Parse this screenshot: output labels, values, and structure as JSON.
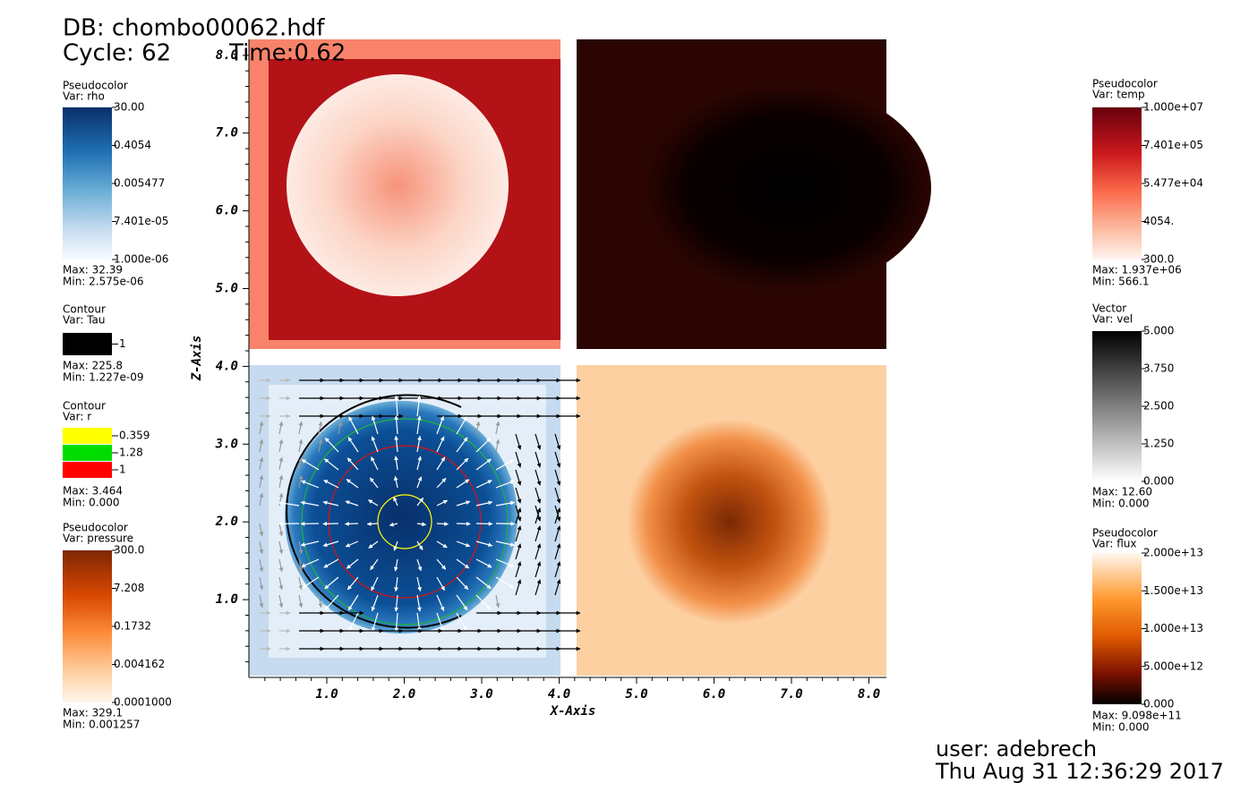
{
  "header": {
    "db": "DB: chombo00062.hdf",
    "cycle": "Cycle: 62",
    "time": "Time:0.62"
  },
  "legends": [
    {
      "plot": "Pseudocolor",
      "var": "Var: rho",
      "labels": [
        "30.00",
        "0.4054",
        "0.005477",
        "7.401e-05",
        "1.000e-06"
      ],
      "max": "Max:  32.39",
      "min": "Min:  2.575e-06"
    },
    {
      "plot": "Contour",
      "var": "Var: Tau",
      "labels": [
        "1"
      ],
      "max": "Max:  225.8",
      "min": "Min:  1.227e-09"
    },
    {
      "plot": "Contour",
      "var": "Var: r",
      "labels": [
        "0.359",
        "1.28",
        "1"
      ],
      "max": "Max:  3.464",
      "min": "Min:  0.000"
    },
    {
      "plot": "Pseudocolor",
      "var": "Var: pressure",
      "labels": [
        "300.0",
        "7.208",
        "0.1732",
        "0.004162",
        "0.0001000"
      ],
      "max": "Max:  329.1",
      "min": "Min:  0.001257"
    },
    {
      "plot": "Pseudocolor",
      "var": "Var: temp",
      "labels": [
        "1.000e+07",
        "7.401e+05",
        "5.477e+04",
        "4054.",
        "300.0"
      ],
      "max": "Max:  1.937e+06",
      "min": "Min:  566.1"
    },
    {
      "plot": "Vector",
      "var": "Var: vel",
      "labels": [
        "5.000",
        "3.750",
        "2.500",
        "1.250",
        "0.000"
      ],
      "max": "Max:  12.60",
      "min": "Min:  0.000"
    },
    {
      "plot": "Pseudocolor",
      "var": "Var: flux",
      "labels": [
        "2.000e+13",
        "1.500e+13",
        "1.000e+13",
        "5.000e+12",
        "0.000"
      ],
      "max": "Max:  9.098e+11",
      "min": "Min:  0.000"
    }
  ],
  "axes": {
    "x_title": "X-Axis",
    "y_title": "Z-Axis",
    "x_ticks": [
      "1.0",
      "2.0",
      "3.0",
      "4.0",
      "5.0",
      "6.0",
      "7.0",
      "8.0"
    ],
    "y_ticks": [
      "1.0",
      "2.0",
      "3.0",
      "4.0",
      "5.0",
      "6.0",
      "7.0",
      "8.0"
    ]
  },
  "footer": {
    "user": "user: adebrech",
    "date": "Thu Aug 31 12:36:29 2017"
  }
}
